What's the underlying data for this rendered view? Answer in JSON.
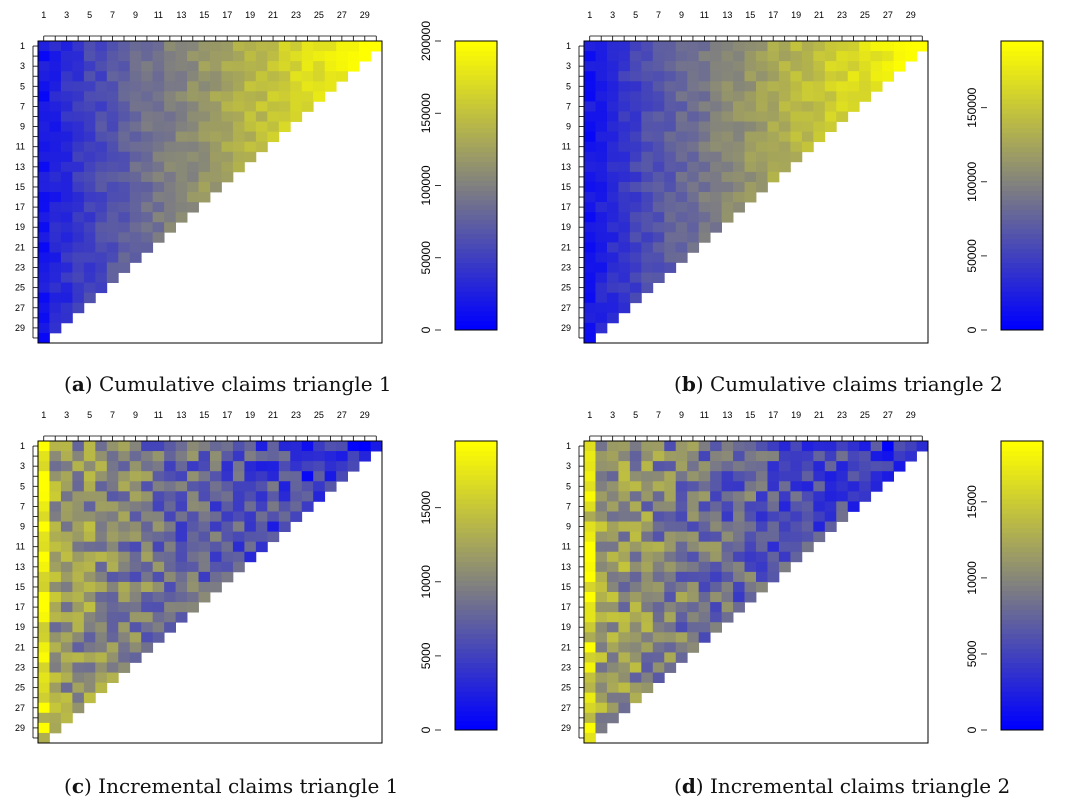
{
  "colors": {
    "low": "#0000ff",
    "mid": "#808080",
    "high": "#ffff00",
    "frame": "#000000"
  },
  "captions": [
    {
      "letter": "a",
      "text": " Cumulative claims triangle 1"
    },
    {
      "letter": "b",
      "text": " Cumulative claims triangle 2"
    },
    {
      "letter": "c",
      "text": " Incremental claims triangle 1"
    },
    {
      "letter": "d",
      "text": " Incremental claims triangle 2"
    }
  ],
  "chart_data": [
    {
      "type": "heatmap",
      "title": "",
      "n": 30,
      "x_ticks": [
        "1",
        "3",
        "5",
        "7",
        "9",
        "11",
        "13",
        "15",
        "17",
        "19",
        "21",
        "23",
        "25",
        "27",
        "29"
      ],
      "y_ticks": [
        "1",
        "3",
        "5",
        "7",
        "9",
        "11",
        "13",
        "15",
        "17",
        "19",
        "21",
        "23",
        "25",
        "27",
        "29"
      ],
      "colorbar_ticks": [
        "0",
        "50000",
        "100000",
        "150000",
        "200000"
      ],
      "colorbar_max": 200000,
      "cell_model": "cumulative",
      "scale_range": [
        0,
        200000
      ]
    },
    {
      "type": "heatmap",
      "title": "",
      "n": 30,
      "x_ticks": [
        "1",
        "3",
        "5",
        "7",
        "9",
        "11",
        "13",
        "15",
        "17",
        "19",
        "21",
        "23",
        "25",
        "27",
        "29"
      ],
      "y_ticks": [
        "1",
        "3",
        "5",
        "7",
        "9",
        "11",
        "13",
        "15",
        "17",
        "19",
        "21",
        "23",
        "25",
        "27",
        "29"
      ],
      "colorbar_ticks": [
        "0",
        "50000",
        "100000",
        "150000"
      ],
      "colorbar_max": 195000,
      "cell_model": "cumulative",
      "scale_range": [
        0,
        195000
      ]
    },
    {
      "type": "heatmap",
      "title": "",
      "n": 30,
      "x_ticks": [
        "1",
        "3",
        "5",
        "7",
        "9",
        "11",
        "13",
        "15",
        "17",
        "19",
        "21",
        "23",
        "25",
        "27",
        "29"
      ],
      "y_ticks": [
        "1",
        "3",
        "5",
        "7",
        "9",
        "11",
        "13",
        "15",
        "17",
        "19",
        "21",
        "23",
        "25",
        "27",
        "29"
      ],
      "colorbar_ticks": [
        "0",
        "5000",
        "10000",
        "15000"
      ],
      "colorbar_max": 19500,
      "cell_model": "incremental",
      "scale_range": [
        0,
        19500
      ]
    },
    {
      "type": "heatmap",
      "title": "",
      "n": 30,
      "x_ticks": [
        "1",
        "3",
        "5",
        "7",
        "9",
        "11",
        "13",
        "15",
        "17",
        "19",
        "21",
        "23",
        "25",
        "27",
        "29"
      ],
      "y_ticks": [
        "1",
        "3",
        "5",
        "7",
        "9",
        "11",
        "13",
        "15",
        "17",
        "19",
        "21",
        "23",
        "25",
        "27",
        "29"
      ],
      "colorbar_ticks": [
        "0",
        "5000",
        "10000",
        "15000"
      ],
      "colorbar_max": 19000,
      "cell_model": "incremental",
      "scale_range": [
        0,
        19000
      ]
    }
  ]
}
